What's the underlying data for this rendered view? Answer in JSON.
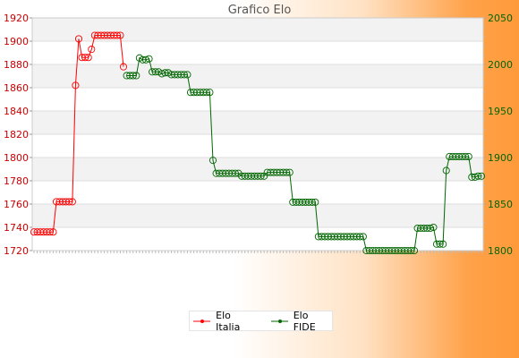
{
  "chart_data": {
    "type": "line",
    "title": "Grafico Elo",
    "xlabel": "",
    "ylabel": "",
    "grid": true,
    "legend_position": "bottom",
    "y_left": {
      "ylim": [
        1720,
        1920
      ],
      "ticks": [
        1720,
        1740,
        1760,
        1780,
        1800,
        1820,
        1840,
        1860,
        1880,
        1900,
        1920
      ],
      "color": "#cc0000"
    },
    "y_right": {
      "ylim": [
        1800,
        2050
      ],
      "ticks": [
        1800,
        1850,
        1900,
        1950,
        2000,
        2050
      ],
      "color": "#006600"
    },
    "x_count": 140,
    "series": [
      {
        "name": "Elo Italia",
        "axis": "left",
        "color": "#ff0000",
        "points": [
          [
            0,
            1736
          ],
          [
            1,
            1736
          ],
          [
            2,
            1736
          ],
          [
            3,
            1736
          ],
          [
            4,
            1736
          ],
          [
            5,
            1736
          ],
          [
            6,
            1736
          ],
          [
            7,
            1762
          ],
          [
            8,
            1762
          ],
          [
            9,
            1762
          ],
          [
            10,
            1762
          ],
          [
            11,
            1762
          ],
          [
            12,
            1762
          ],
          [
            13,
            1862
          ],
          [
            14,
            1902
          ],
          [
            15,
            1886
          ],
          [
            16,
            1886
          ],
          [
            17,
            1886
          ],
          [
            18,
            1893
          ],
          [
            19,
            1905
          ],
          [
            20,
            1905
          ],
          [
            21,
            1905
          ],
          [
            22,
            1905
          ],
          [
            23,
            1905
          ],
          [
            24,
            1905
          ],
          [
            25,
            1905
          ],
          [
            26,
            1905
          ],
          [
            27,
            1905
          ],
          [
            28,
            1878
          ]
        ]
      },
      {
        "name": "Elo FIDE",
        "axis": "right",
        "color": "#006600",
        "points": [
          [
            29,
            1988
          ],
          [
            30,
            1988
          ],
          [
            31,
            1988
          ],
          [
            32,
            1988
          ],
          [
            33,
            2007
          ],
          [
            34,
            2005
          ],
          [
            35,
            2005
          ],
          [
            36,
            2006
          ],
          [
            37,
            1992
          ],
          [
            38,
            1992
          ],
          [
            39,
            1992
          ],
          [
            40,
            1990
          ],
          [
            41,
            1991
          ],
          [
            42,
            1991
          ],
          [
            43,
            1989
          ],
          [
            44,
            1989
          ],
          [
            45,
            1989
          ],
          [
            46,
            1989
          ],
          [
            47,
            1989
          ],
          [
            48,
            1989
          ],
          [
            49,
            1970
          ],
          [
            50,
            1970
          ],
          [
            51,
            1970
          ],
          [
            52,
            1970
          ],
          [
            53,
            1970
          ],
          [
            54,
            1970
          ],
          [
            55,
            1970
          ],
          [
            56,
            1897
          ],
          [
            57,
            1883
          ],
          [
            58,
            1883
          ],
          [
            59,
            1883
          ],
          [
            60,
            1883
          ],
          [
            61,
            1883
          ],
          [
            62,
            1883
          ],
          [
            63,
            1883
          ],
          [
            64,
            1883
          ],
          [
            65,
            1880
          ],
          [
            66,
            1880
          ],
          [
            67,
            1880
          ],
          [
            68,
            1880
          ],
          [
            69,
            1880
          ],
          [
            70,
            1880
          ],
          [
            71,
            1880
          ],
          [
            72,
            1880
          ],
          [
            73,
            1884
          ],
          [
            74,
            1884
          ],
          [
            75,
            1884
          ],
          [
            76,
            1884
          ],
          [
            77,
            1884
          ],
          [
            78,
            1884
          ],
          [
            79,
            1884
          ],
          [
            80,
            1884
          ],
          [
            81,
            1852
          ],
          [
            82,
            1852
          ],
          [
            83,
            1852
          ],
          [
            84,
            1852
          ],
          [
            85,
            1852
          ],
          [
            86,
            1852
          ],
          [
            87,
            1852
          ],
          [
            88,
            1852
          ],
          [
            89,
            1815
          ],
          [
            90,
            1815
          ],
          [
            91,
            1815
          ],
          [
            92,
            1815
          ],
          [
            93,
            1815
          ],
          [
            94,
            1815
          ],
          [
            95,
            1815
          ],
          [
            96,
            1815
          ],
          [
            97,
            1815
          ],
          [
            98,
            1815
          ],
          [
            99,
            1815
          ],
          [
            100,
            1815
          ],
          [
            101,
            1815
          ],
          [
            102,
            1815
          ],
          [
            103,
            1815
          ],
          [
            104,
            1800
          ],
          [
            105,
            1800
          ],
          [
            106,
            1800
          ],
          [
            107,
            1800
          ],
          [
            108,
            1800
          ],
          [
            109,
            1800
          ],
          [
            110,
            1800
          ],
          [
            111,
            1800
          ],
          [
            112,
            1800
          ],
          [
            113,
            1800
          ],
          [
            114,
            1800
          ],
          [
            115,
            1800
          ],
          [
            116,
            1800
          ],
          [
            117,
            1800
          ],
          [
            118,
            1800
          ],
          [
            119,
            1800
          ],
          [
            120,
            1824
          ],
          [
            121,
            1824
          ],
          [
            122,
            1824
          ],
          [
            123,
            1824
          ],
          [
            124,
            1824
          ],
          [
            125,
            1825
          ],
          [
            126,
            1807
          ],
          [
            127,
            1807
          ],
          [
            128,
            1807
          ],
          [
            129,
            1886
          ],
          [
            130,
            1901
          ],
          [
            131,
            1901
          ],
          [
            132,
            1901
          ],
          [
            133,
            1901
          ],
          [
            134,
            1901
          ],
          [
            135,
            1901
          ],
          [
            136,
            1901
          ],
          [
            137,
            1879
          ],
          [
            138,
            1879
          ],
          [
            139,
            1880
          ],
          [
            140,
            1880
          ]
        ]
      }
    ]
  }
}
